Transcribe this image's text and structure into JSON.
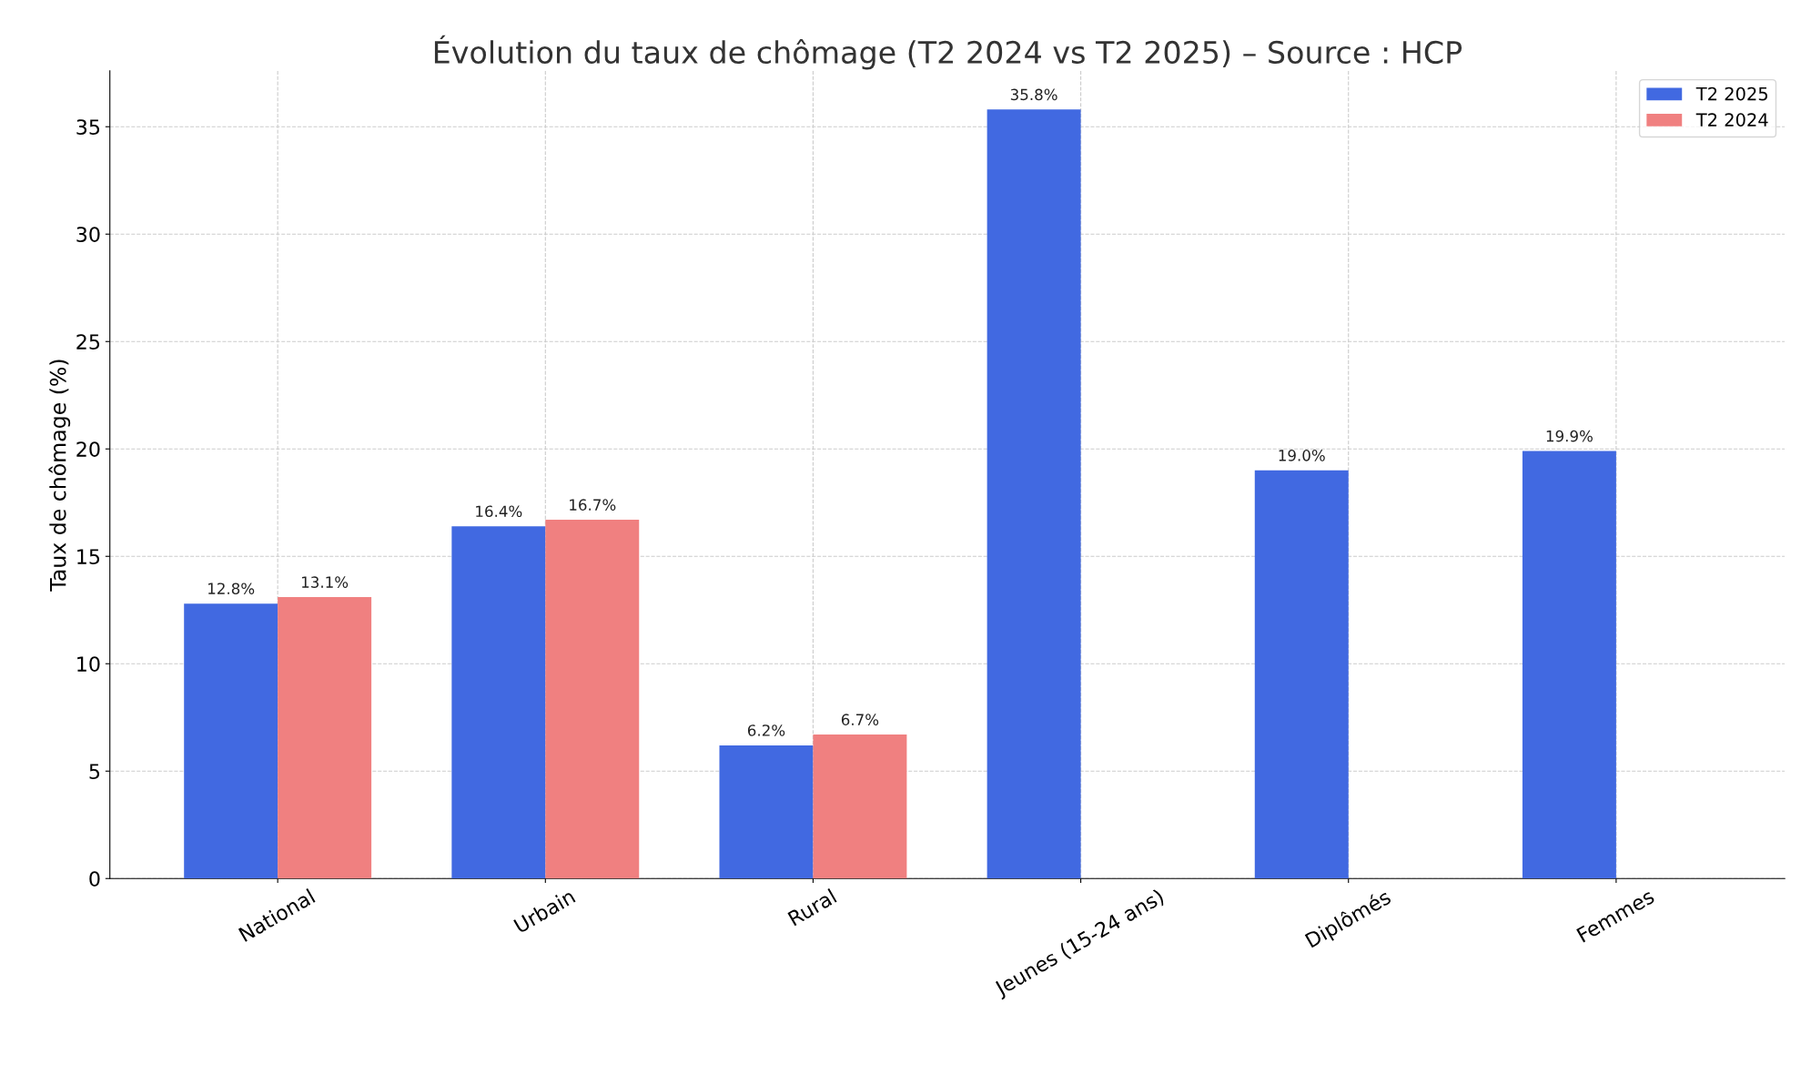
{
  "chart_data": {
    "type": "bar",
    "title": "Évolution du taux de chômage (T2 2024 vs T2 2025) – Source : HCP",
    "ylabel": "Taux de chômage (%)",
    "categories": [
      "National",
      "Urbain",
      "Rural",
      "Jeunes (15-24 ans)",
      "Diplômés",
      "Femmes"
    ],
    "series": [
      {
        "name": "T2 2025",
        "color": "#4169e1",
        "values": [
          12.8,
          16.4,
          6.2,
          35.8,
          19.0,
          19.9
        ],
        "value_labels": [
          "12.8%",
          "16.4%",
          "6.2%",
          "35.8%",
          "19.0%",
          "19.9%"
        ]
      },
      {
        "name": "T2 2024",
        "color": "#f08080",
        "values": [
          13.1,
          16.7,
          6.7,
          null,
          null,
          null
        ],
        "value_labels": [
          "13.1%",
          "16.7%",
          "6.7%",
          null,
          null,
          null
        ]
      }
    ],
    "ylim": [
      0,
      37.6
    ],
    "yticks": [
      0,
      5,
      10,
      15,
      20,
      25,
      30,
      35
    ],
    "grid": true,
    "legend": "top right"
  }
}
